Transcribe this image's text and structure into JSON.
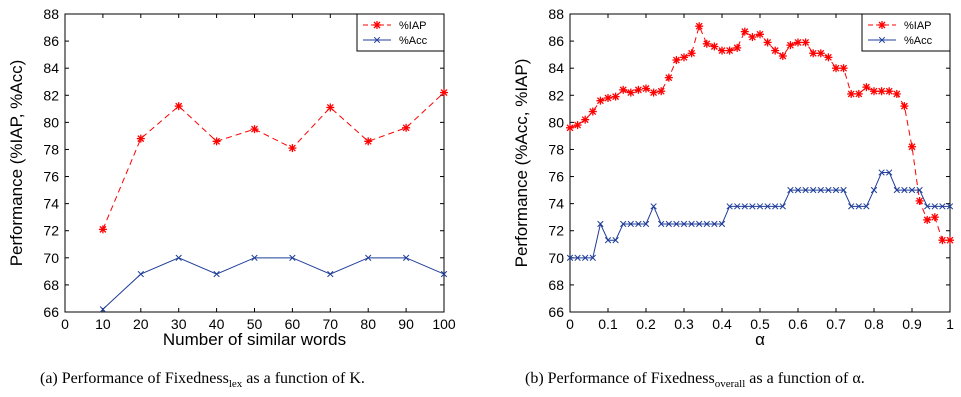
{
  "chart_data": [
    {
      "type": "line",
      "xlabel": "Number of similar words",
      "ylabel": "Performance (%IAP, %Acc)",
      "xlim": [
        0,
        100
      ],
      "ylim": [
        66,
        88
      ],
      "xticks": [
        "0",
        "10",
        "20",
        "30",
        "40",
        "50",
        "60",
        "70",
        "80",
        "90",
        "100"
      ],
      "yticks": [
        "66",
        "68",
        "70",
        "72",
        "74",
        "76",
        "78",
        "80",
        "82",
        "84",
        "86",
        "88"
      ],
      "legend_position": "top-right",
      "series": [
        {
          "name": "%IAP",
          "color": "#ff0000",
          "style": "dashed",
          "marker": "star",
          "x": [
            10,
            20,
            30,
            40,
            50,
            60,
            70,
            80,
            90,
            100
          ],
          "y": [
            72.1,
            78.8,
            81.2,
            78.6,
            79.5,
            78.1,
            81.1,
            78.6,
            79.6,
            82.2
          ]
        },
        {
          "name": "%Acc",
          "color": "#1f3d99",
          "style": "solid",
          "marker": "x",
          "x": [
            10,
            20,
            30,
            40,
            50,
            60,
            70,
            80,
            90,
            100
          ],
          "y": [
            66.2,
            68.8,
            70.0,
            68.8,
            70.0,
            70.0,
            68.8,
            70.0,
            70.0,
            68.8
          ]
        }
      ],
      "caption": {
        "prefix": "(a) Performance of Fixedness",
        "sub": "lex",
        "suffix": " as a function of K."
      }
    },
    {
      "type": "line",
      "xlabel": "α",
      "ylabel": "Performance (%Acc, %IAP)",
      "xlim": [
        0,
        1
      ],
      "ylim": [
        66,
        88
      ],
      "xticks": [
        "0",
        "0.1",
        "0.2",
        "0.3",
        "0.4",
        "0.5",
        "0.6",
        "0.7",
        "0.8",
        "0.9",
        "1"
      ],
      "yticks": [
        "66",
        "68",
        "70",
        "72",
        "74",
        "76",
        "78",
        "80",
        "82",
        "84",
        "86",
        "88"
      ],
      "legend_position": "top-right",
      "series": [
        {
          "name": "%IAP",
          "color": "#ff0000",
          "style": "dashed",
          "marker": "star",
          "x": [
            0,
            0.02,
            0.04,
            0.06,
            0.08,
            0.1,
            0.12,
            0.14,
            0.16,
            0.18,
            0.2,
            0.22,
            0.24,
            0.26,
            0.28,
            0.3,
            0.32,
            0.34,
            0.36,
            0.38,
            0.4,
            0.42,
            0.44,
            0.46,
            0.48,
            0.5,
            0.52,
            0.54,
            0.56,
            0.58,
            0.6,
            0.62,
            0.64,
            0.66,
            0.68,
            0.7,
            0.72,
            0.74,
            0.76,
            0.78,
            0.8,
            0.82,
            0.84,
            0.86,
            0.88,
            0.9,
            0.92,
            0.94,
            0.96,
            0.98,
            1.0
          ],
          "y": [
            79.6,
            79.8,
            80.2,
            80.8,
            81.6,
            81.8,
            81.9,
            82.4,
            82.2,
            82.4,
            82.5,
            82.2,
            82.3,
            83.3,
            84.6,
            84.8,
            85.1,
            87.1,
            85.8,
            85.6,
            85.3,
            85.3,
            85.5,
            86.7,
            86.3,
            86.5,
            85.9,
            85.3,
            84.9,
            85.7,
            85.9,
            85.9,
            85.1,
            85.1,
            84.8,
            84.0,
            84.0,
            82.1,
            82.1,
            82.6,
            82.3,
            82.3,
            82.3,
            82.1,
            81.2,
            78.2,
            74.2,
            72.8,
            73.0,
            71.3,
            71.3
          ]
        },
        {
          "name": "%Acc",
          "color": "#1f3d99",
          "style": "solid",
          "marker": "x",
          "x": [
            0,
            0.02,
            0.04,
            0.06,
            0.08,
            0.1,
            0.12,
            0.14,
            0.16,
            0.18,
            0.2,
            0.22,
            0.24,
            0.26,
            0.28,
            0.3,
            0.32,
            0.34,
            0.36,
            0.38,
            0.4,
            0.42,
            0.44,
            0.46,
            0.48,
            0.5,
            0.52,
            0.54,
            0.56,
            0.58,
            0.6,
            0.62,
            0.64,
            0.66,
            0.68,
            0.7,
            0.72,
            0.74,
            0.76,
            0.78,
            0.8,
            0.82,
            0.84,
            0.86,
            0.88,
            0.9,
            0.92,
            0.94,
            0.96,
            0.98,
            1.0
          ],
          "y": [
            70.0,
            70.0,
            70.0,
            70.0,
            72.5,
            71.3,
            71.3,
            72.5,
            72.5,
            72.5,
            72.5,
            73.8,
            72.5,
            72.5,
            72.5,
            72.5,
            72.5,
            72.5,
            72.5,
            72.5,
            72.5,
            73.8,
            73.8,
            73.8,
            73.8,
            73.8,
            73.8,
            73.8,
            73.8,
            75.0,
            75.0,
            75.0,
            75.0,
            75.0,
            75.0,
            75.0,
            75.0,
            73.8,
            73.8,
            73.8,
            75.0,
            76.3,
            76.3,
            75.0,
            75.0,
            75.0,
            75.0,
            73.8,
            73.8,
            73.8,
            73.8
          ]
        }
      ],
      "caption": {
        "prefix": "(b) Performance of Fixedness",
        "sub": "overall",
        "suffix": " as a function of α."
      }
    }
  ]
}
